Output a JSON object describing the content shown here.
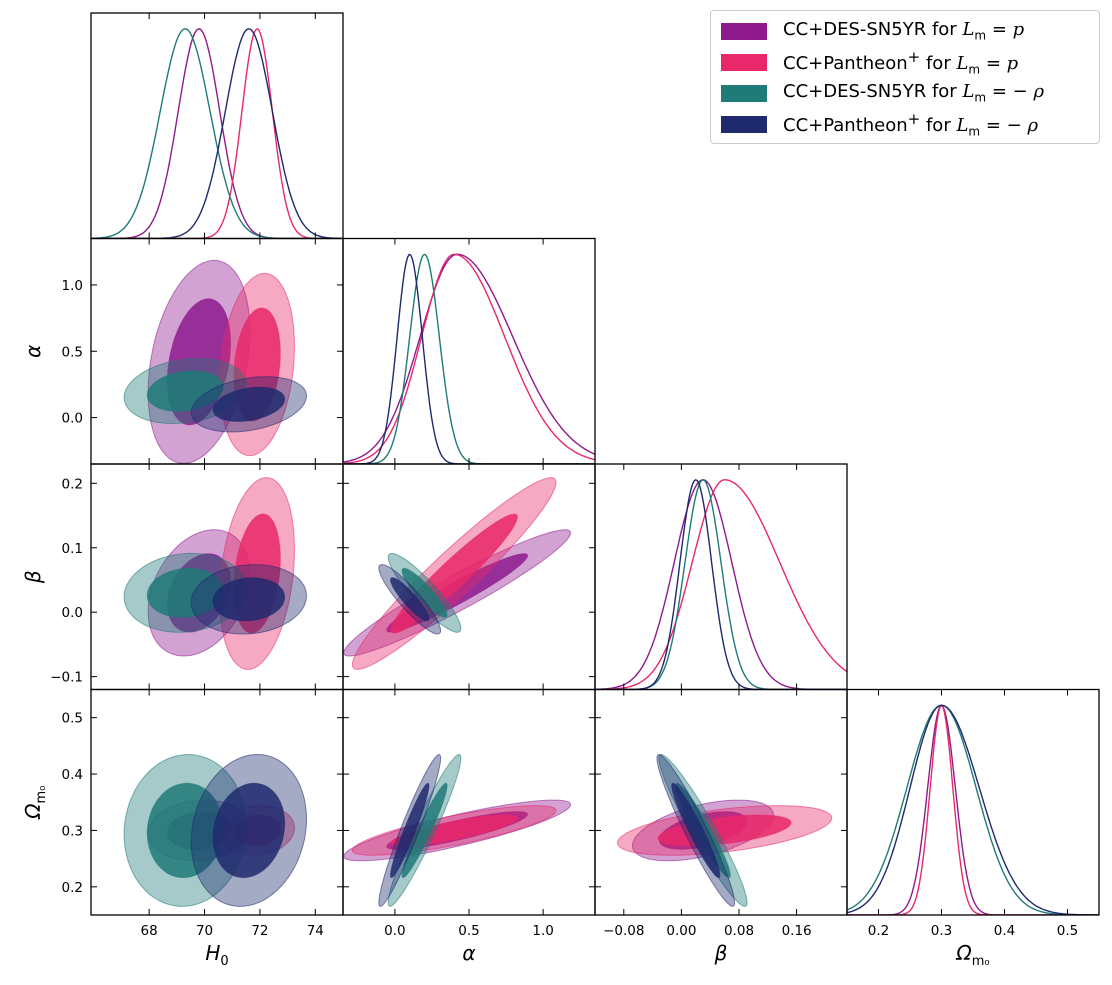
{
  "chart_data": {
    "type": "corner",
    "parameters": [
      {
        "name": "H0",
        "label": "H",
        "label_sub": "0",
        "range": [
          65.9,
          75.0
        ],
        "ticks": [
          68,
          70,
          72,
          74
        ],
        "tick_labels": [
          "68",
          "70",
          "72",
          "74"
        ]
      },
      {
        "name": "alpha",
        "label": "α",
        "label_sub": "",
        "range": [
          -0.35,
          1.35
        ],
        "ticks": [
          0.0,
          0.5,
          1.0
        ],
        "tick_labels": [
          "0.0",
          "0.5",
          "1.0"
        ]
      },
      {
        "name": "beta",
        "label": "β",
        "label_sub": "",
        "range": [
          -0.12,
          0.23
        ],
        "ticks": [
          -0.08,
          0.0,
          0.08,
          0.16
        ],
        "tick_labels": [
          "−0.08",
          "0.00",
          "0.08",
          "0.16"
        ],
        "y_ticks": [
          -0.1,
          0.0,
          0.1,
          0.2
        ],
        "y_tick_labels": [
          "−0.1",
          "0.0",
          "0.1",
          "0.2"
        ]
      },
      {
        "name": "Om0",
        "label": "Ω",
        "label_sub": "m₀",
        "range": [
          0.15,
          0.55
        ],
        "ticks": [
          0.2,
          0.3,
          0.4,
          0.5
        ],
        "tick_labels": [
          "0.2",
          "0.3",
          "0.4",
          "0.5"
        ],
        "y_ticks": [
          0.2,
          0.3,
          0.4,
          0.5
        ],
        "y_tick_labels": [
          "0.2",
          "0.3",
          "0.4",
          "0.5"
        ]
      }
    ],
    "series": [
      {
        "name": "CC+DES-SN5YR for L_m = p",
        "legend_text": "CC+DES-SN5YR for ",
        "legend_math": "L",
        "legend_sub": "m",
        "legend_tail": " = p",
        "color": "#8e1a8e",
        "mean": [
          69.8,
          0.42,
          0.03,
          0.3
        ],
        "sd": [
          0.75,
          0.25,
          0.04,
          0.022
        ],
        "tail": [
          0,
          0.5,
          0,
          0
        ],
        "corr": {
          "0-1": 0.3,
          "0-2": 0.3,
          "1-2": 0.95,
          "0-3": 0.1,
          "1-3": 0.85,
          "2-3": 0.5
        }
      },
      {
        "name": "CC+Pantheon+ for L_m = p",
        "legend_text": "CC+Pantheon",
        "legend_sup": "+",
        "legend_text2": " for ",
        "legend_math": "L",
        "legend_sub": "m",
        "legend_tail": " = p",
        "color": "#e8286a",
        "mean": [
          71.9,
          0.4,
          0.06,
          0.3
        ],
        "sd": [
          0.55,
          0.22,
          0.045,
          0.018
        ],
        "tail": [
          0,
          0.55,
          0.7,
          0
        ],
        "corr": {
          "0-1": 0.2,
          "0-2": 0.25,
          "1-2": 0.95,
          "0-3": 0.1,
          "1-3": 0.8,
          "2-3": 0.5
        }
      },
      {
        "name": "CC+DES-SN5YR for L_m = -ρ",
        "legend_text": "CC+DES-SN5YR for ",
        "legend_math": "L",
        "legend_sub": "m",
        "legend_tail": " = − ρ",
        "color": "#1f7a78",
        "mean": [
          69.3,
          0.2,
          0.03,
          0.3
        ],
        "sd": [
          0.9,
          0.1,
          0.025,
          0.055
        ],
        "tail": [
          0,
          0,
          0,
          0
        ],
        "corr": {
          "0-1": 0.2,
          "0-2": 0.1,
          "1-2": -0.9,
          "0-3": 0.05,
          "1-3": 0.95,
          "2-3": -0.95
        }
      },
      {
        "name": "CC+Pantheon+ for L_m = -ρ",
        "legend_text": "CC+Pantheon",
        "legend_sup": "+",
        "legend_text2": " for ",
        "legend_math": "L",
        "legend_sub": "m",
        "legend_tail": " = − ρ",
        "color": "#1f2a6e",
        "mean": [
          71.6,
          0.1,
          0.02,
          0.3
        ],
        "sd": [
          0.85,
          0.085,
          0.022,
          0.05
        ],
        "tail": [
          0,
          0,
          0,
          0.2
        ],
        "corr": {
          "0-1": 0.3,
          "0-2": 0.1,
          "1-2": -0.9,
          "0-3": 0.15,
          "1-3": 0.95,
          "2-3": -0.95
        }
      }
    ],
    "legend_position": "top-right",
    "grid": false
  },
  "legend": {
    "entry_1": "CC+DES-SN5YR for",
    "entry_2": "CC+Pantheon",
    "entry_3": "CC+DES-SN5YR for",
    "entry_4": "CC+Pantheon"
  }
}
